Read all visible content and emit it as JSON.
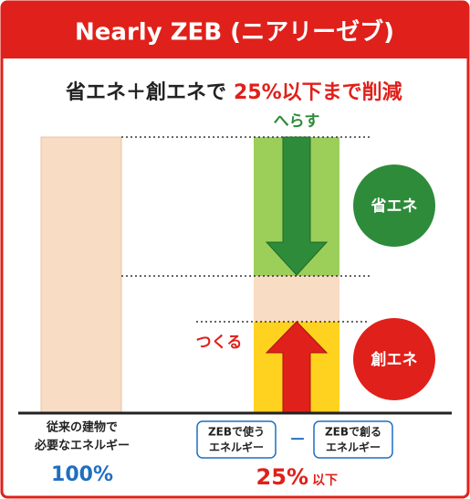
{
  "header": {
    "title": "Nearly ZEB (ニアリーゼブ)"
  },
  "headline": {
    "lead": "省エネ＋創エネで",
    "emphasis": "25%以下まで削減"
  },
  "diagram": {
    "reduce_label": "へらす",
    "create_label": "つくる",
    "saving_badge": "省エネ",
    "generation_badge": "創エネ"
  },
  "conventional": {
    "lines": [
      "従来の建物で",
      "必要なエネルギー"
    ],
    "percent": "100%"
  },
  "zeb": {
    "used_box": [
      "ZEBで使う",
      "エネルギー"
    ],
    "operator": "－",
    "created_box": [
      "ZEBで創る",
      "エネルギー"
    ],
    "percent": "25%",
    "qualifier": "以下"
  }
}
